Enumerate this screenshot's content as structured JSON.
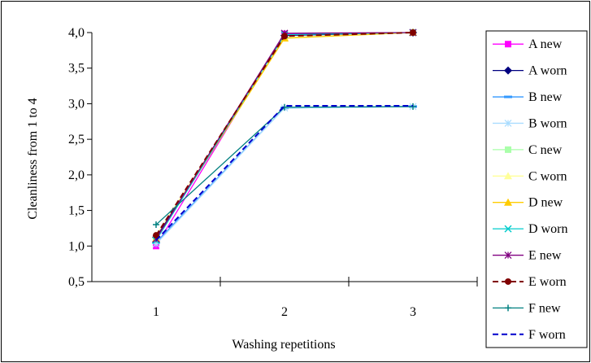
{
  "chart_data": {
    "type": "line",
    "title": "",
    "xlabel": "Washing repetitions",
    "ylabel": "Cleanliness from 1 to 4",
    "categories": [
      "1",
      "2",
      "3"
    ],
    "ylim": [
      0.5,
      4.0
    ],
    "yticks": [
      "0,5",
      "1,0",
      "1,5",
      "2,0",
      "2,5",
      "3,0",
      "3,5",
      "4,0"
    ],
    "legend_position": "right",
    "grid": false,
    "series": [
      {
        "name": "A new",
        "values": [
          1.0,
          3.98,
          4.0
        ],
        "color": "#ff00ff",
        "marker": "square",
        "dash": false
      },
      {
        "name": "A worn",
        "values": [
          1.12,
          3.96,
          4.0
        ],
        "color": "#000080",
        "marker": "diamond",
        "dash": false
      },
      {
        "name": "B new",
        "values": [
          1.05,
          2.94,
          2.96
        ],
        "color": "#3399ff",
        "marker": "hline",
        "dash": false
      },
      {
        "name": "B worn",
        "values": [
          1.03,
          2.94,
          2.96
        ],
        "color": "#aaddff",
        "marker": "star",
        "dash": false
      },
      {
        "name": "C new",
        "values": [
          1.1,
          3.93,
          4.0
        ],
        "color": "#aaffaa",
        "marker": "square",
        "dash": false
      },
      {
        "name": "C worn",
        "values": [
          1.15,
          3.93,
          4.0
        ],
        "color": "#ffff99",
        "marker": "triangle",
        "dash": false
      },
      {
        "name": "D new",
        "values": [
          1.1,
          3.92,
          4.0
        ],
        "color": "#ffcc00",
        "marker": "triangle",
        "dash": false
      },
      {
        "name": "D worn",
        "values": [
          1.08,
          3.97,
          4.0
        ],
        "color": "#00cccc",
        "marker": "x",
        "dash": false
      },
      {
        "name": "E new",
        "values": [
          1.1,
          3.99,
          4.0
        ],
        "color": "#800080",
        "marker": "asterisk",
        "dash": false
      },
      {
        "name": "E worn",
        "values": [
          1.15,
          3.95,
          4.0
        ],
        "color": "#800000",
        "marker": "circle",
        "dash": true
      },
      {
        "name": "F new",
        "values": [
          1.3,
          2.95,
          2.96
        ],
        "color": "#008080",
        "marker": "plus",
        "dash": false
      },
      {
        "name": "F worn",
        "values": [
          1.08,
          2.97,
          2.97
        ],
        "color": "#0000cc",
        "marker": "none",
        "dash": true
      }
    ]
  }
}
